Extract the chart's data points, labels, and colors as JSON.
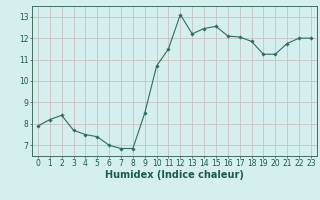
{
  "x": [
    0,
    1,
    2,
    3,
    4,
    5,
    6,
    7,
    8,
    9,
    10,
    11,
    12,
    13,
    14,
    15,
    16,
    17,
    18,
    19,
    20,
    21,
    22,
    23
  ],
  "y": [
    7.9,
    8.2,
    8.4,
    7.7,
    7.5,
    7.4,
    7.0,
    6.85,
    6.85,
    8.5,
    10.7,
    11.5,
    13.1,
    12.2,
    12.45,
    12.55,
    12.1,
    12.05,
    11.85,
    11.25,
    11.25,
    11.75,
    12.0,
    12.0
  ],
  "line_color": "#2d6e5e",
  "marker": "D",
  "marker_size": 1.8,
  "line_width": 0.8,
  "xlabel": "Humidex (Indice chaleur)",
  "xlabel_fontsize": 7,
  "xlabel_color": "#1a5c4a",
  "xlim": [
    -0.5,
    23.5
  ],
  "ylim": [
    6.5,
    13.5
  ],
  "yticks": [
    7,
    8,
    9,
    10,
    11,
    12,
    13
  ],
  "xticks": [
    0,
    1,
    2,
    3,
    4,
    5,
    6,
    7,
    8,
    9,
    10,
    11,
    12,
    13,
    14,
    15,
    16,
    17,
    18,
    19,
    20,
    21,
    22,
    23
  ],
  "grid_color": "#c9b8b8",
  "bg_color": "#d5eeee",
  "tick_fontsize": 5.5,
  "tick_color": "#1a5c4a",
  "spine_color": "#3d7060"
}
